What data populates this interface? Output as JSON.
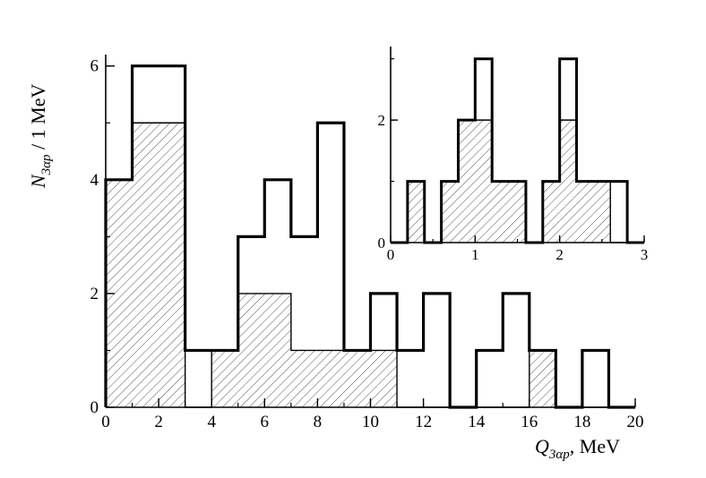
{
  "chart_data": [
    {
      "type": "bar",
      "bin_edges": [
        0,
        1,
        2,
        3,
        4,
        5,
        6,
        7,
        8,
        9,
        10,
        11,
        12,
        13,
        14,
        15,
        16,
        17,
        18,
        19,
        20
      ],
      "series": [
        {
          "name": "open",
          "values": [
            4,
            6,
            6,
            1,
            1,
            3,
            4,
            3,
            5,
            1,
            2,
            1,
            2,
            0,
            1,
            2,
            1,
            0,
            1,
            0
          ]
        },
        {
          "name": "hatched",
          "values": [
            4,
            5,
            5,
            0,
            1,
            2,
            2,
            1,
            1,
            1,
            1,
            0,
            0,
            0,
            0,
            0,
            1,
            0,
            0,
            0
          ]
        }
      ],
      "xlabel": "Q",
      "xlabel_sub": "3αp",
      "xlabel_unit": ", MeV",
      "ylabel": "N",
      "ylabel_sub": "3αp",
      "ylabel_unit": " / 1 MeV",
      "xlim": [
        0,
        20
      ],
      "ylim": [
        0,
        6.2
      ],
      "x_ticks": [
        "0",
        "2",
        "4",
        "6",
        "8",
        "10",
        "12",
        "14",
        "16",
        "18",
        "20"
      ],
      "y_ticks": [
        "0",
        "2",
        "4",
        "6"
      ],
      "grid": false
    },
    {
      "type": "bar",
      "bin_edges": [
        0,
        0.2,
        0.4,
        0.6,
        0.8,
        1.0,
        1.2,
        1.4,
        1.6,
        1.8,
        2.0,
        2.2,
        2.4,
        2.6,
        2.8,
        3.0
      ],
      "series": [
        {
          "name": "open",
          "values": [
            0,
            1,
            0,
            1,
            2,
            3,
            1,
            1,
            0,
            1,
            3,
            1,
            1,
            1,
            0
          ]
        },
        {
          "name": "hatched",
          "values": [
            0,
            1,
            0,
            1,
            2,
            2,
            1,
            1,
            0,
            1,
            2,
            1,
            1,
            0,
            0
          ]
        }
      ],
      "xlim": [
        0,
        3
      ],
      "ylim": [
        0,
        3.2
      ],
      "x_ticks": [
        "0",
        "1",
        "2",
        "3"
      ],
      "y_ticks": [
        "0",
        "2"
      ],
      "grid": false
    }
  ]
}
